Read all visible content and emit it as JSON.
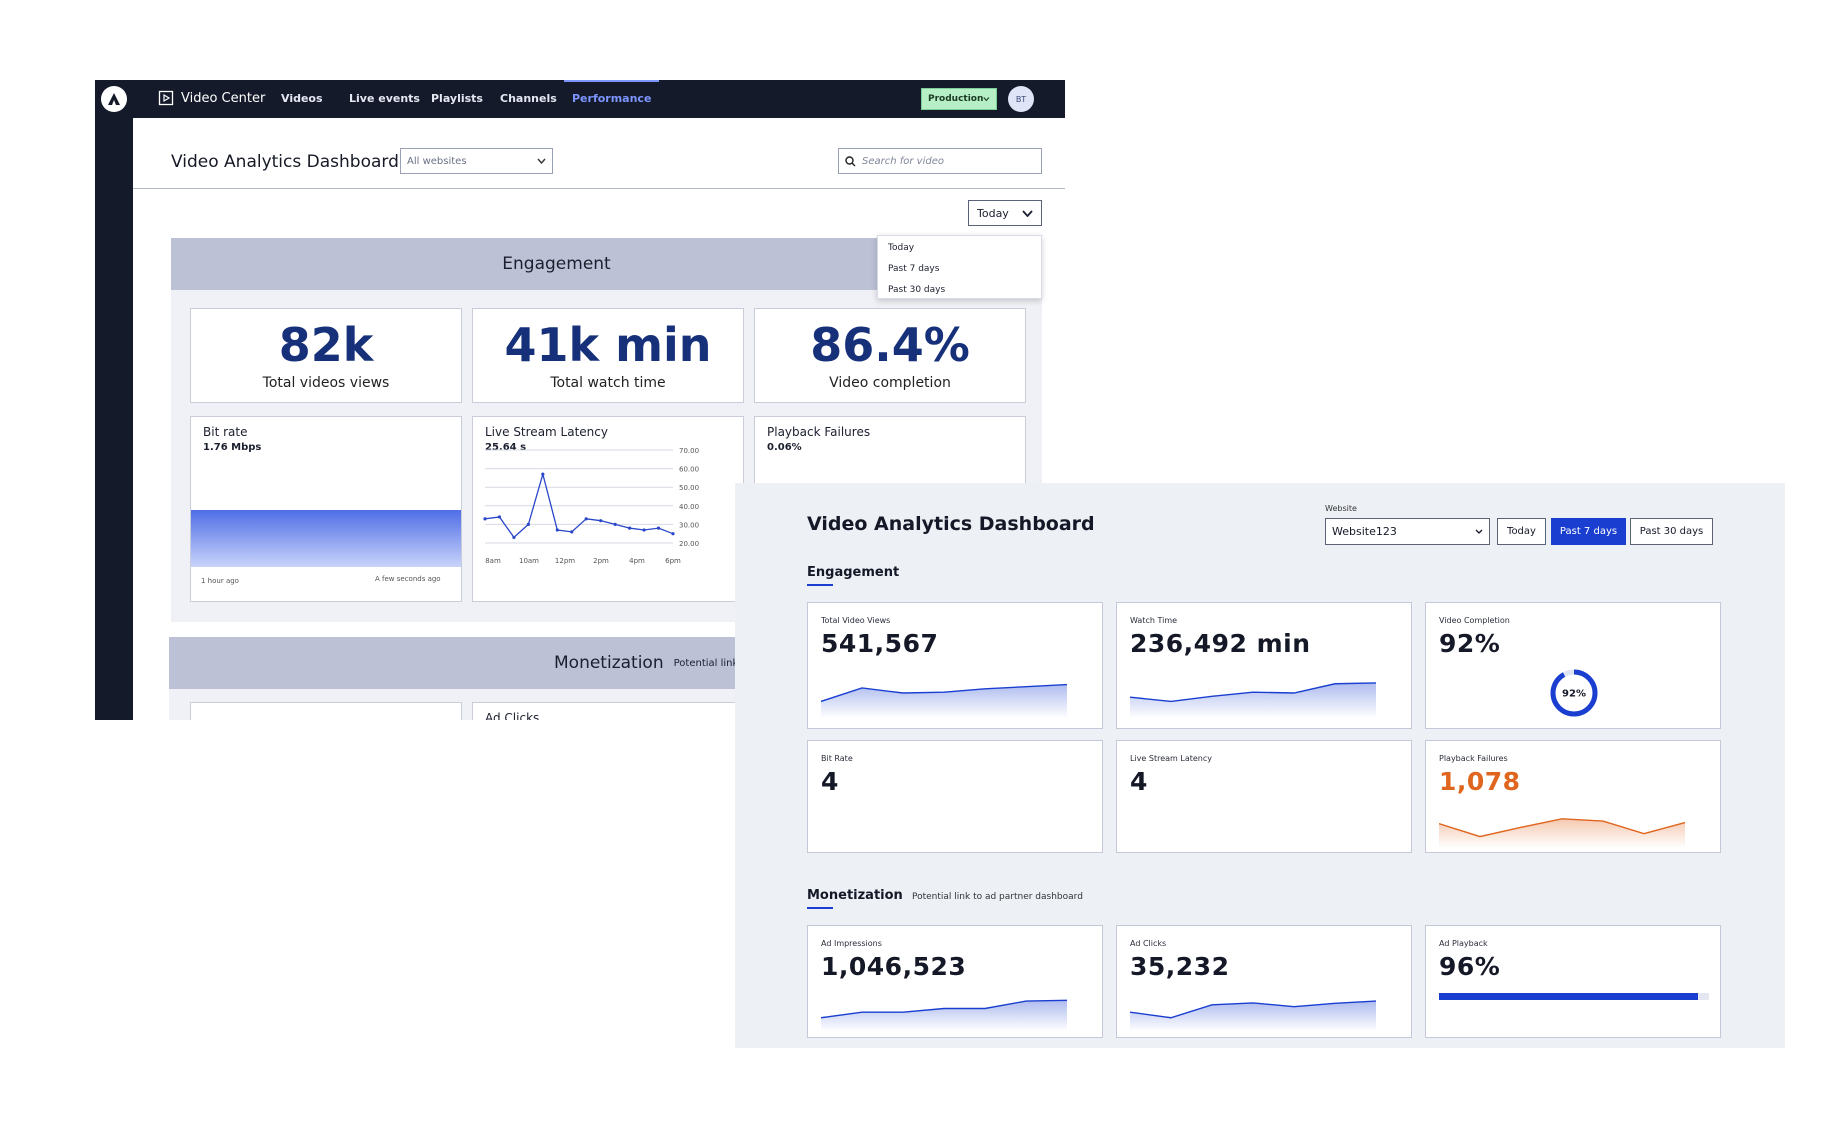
{
  "old": {
    "brand": "Video Center",
    "nav": [
      "Videos",
      "Live events",
      "Playlists",
      "Channels",
      "Performance"
    ],
    "env": "Production",
    "user_initials": "BT",
    "title": "Video Analytics Dashboard",
    "site_select": "All websites",
    "search_placeholder": "Search for video",
    "range": "Today",
    "range_options": [
      "Today",
      "Past 7 days",
      "Past 30 days"
    ],
    "engagement_title": "Engagement",
    "stats": [
      {
        "value": "82k",
        "label": "Total videos views"
      },
      {
        "value": "41k min",
        "label": "Total watch time"
      },
      {
        "value": "86.4%",
        "label": "Video completion"
      }
    ],
    "bit_rate": {
      "title": "Bit rate",
      "value": "1.76 Mbps",
      "x_start": "1 hour ago",
      "x_end": "A few seconds ago"
    },
    "latency": {
      "title": "Live Stream Latency",
      "value": "25.64 s",
      "y_ticks": [
        "70.00",
        "60.00",
        "50.00",
        "40.00",
        "30.00",
        "20.00"
      ],
      "x_ticks": [
        "8am",
        "10am",
        "12pm",
        "2pm",
        "4pm",
        "6pm"
      ],
      "points": [
        33,
        34,
        23,
        30,
        57,
        27,
        26,
        33,
        32,
        30,
        28,
        27,
        28,
        25
      ]
    },
    "playback": {
      "title": "Playback Failures",
      "value": "0.06%"
    },
    "monetization_title": "Monetization",
    "monetization_note": "Potential link to",
    "ad_clicks": "Ad Clicks"
  },
  "new": {
    "title": "Video Analytics Dashboard",
    "website_label": "Website",
    "website_value": "Website123",
    "ranges": [
      "Today",
      "Past 7 days",
      "Past 30 days"
    ],
    "active_range": "Past 7 days",
    "engagement_title": "Engagement",
    "cards": [
      {
        "label": "Total Video Views",
        "value": "541,567",
        "spark": [
          30,
          62,
          50,
          52,
          60,
          65,
          70
        ]
      },
      {
        "label": "Watch Time",
        "value": "236,492 min",
        "spark": [
          40,
          30,
          42,
          52,
          50,
          72,
          74
        ]
      },
      {
        "label": "Video Completion",
        "value": "92%",
        "ring": 0.92,
        "ring_label": "92%"
      },
      {
        "label": "Bit Rate",
        "value": "4"
      },
      {
        "label": "Live Stream Latency",
        "value": "4"
      },
      {
        "label": "Playback Failures",
        "value": "1,078",
        "spark": [
          55,
          20,
          45,
          68,
          62,
          28,
          58
        ]
      }
    ],
    "monetization_title": "Monetization",
    "monetization_note": "Potential link to ad partner dashboard",
    "mon_cards": [
      {
        "label": "Ad Impressions",
        "value": "1,046,523",
        "spark": [
          25,
          40,
          40,
          50,
          50,
          70,
          72
        ]
      },
      {
        "label": "Ad Clicks",
        "value": "35,232",
        "spark": [
          40,
          25,
          60,
          65,
          55,
          64,
          70
        ]
      },
      {
        "label": "Ad Playback",
        "value": "96%",
        "progress": 0.96
      }
    ],
    "colors": {
      "accent": "#1a3fd0",
      "warning": "#e0651e",
      "navy": "#151a2b"
    }
  }
}
